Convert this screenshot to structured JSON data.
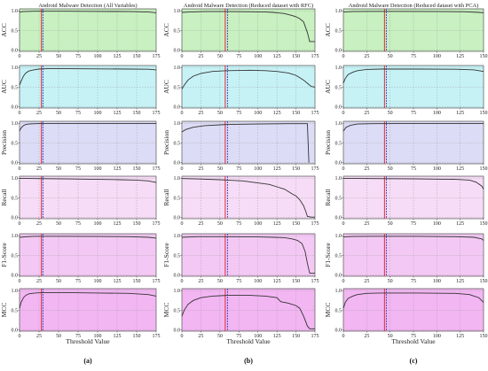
{
  "figure": {
    "panel_labels": [
      "(a)",
      "(b)",
      "(c)"
    ],
    "x_tick_label_size_note": "",
    "metric_colors": {
      "ACC": "#c8f0c0",
      "AUC": "#c6f2f6",
      "Precision": "#dcdcf6",
      "Recall": "#f6dcf6",
      "F1-Score": "#f4c8f4",
      "MCC": "#f2b6f2"
    },
    "curve_color": "#333333",
    "red_line_color": "#e8282d",
    "blue_line_color": "#3a58d8",
    "grid": true
  },
  "chart_data": [
    {
      "type": "line",
      "title": "Android Malware Detection (All Variables)",
      "xlabel": "Threshold Value",
      "xlim": [
        0,
        175
      ],
      "xticks": [
        "0",
        "25",
        "50",
        "75",
        "100",
        "125",
        "150",
        "175"
      ],
      "ylim": [
        0,
        1.0
      ],
      "yticks": [
        "0.0",
        "0.5",
        "1.0"
      ],
      "vlines": {
        "red": 28,
        "blue": 30
      },
      "metrics": [
        {
          "name": "ACC",
          "x": [
            0,
            5,
            10,
            20,
            30,
            60,
            100,
            140,
            165,
            175
          ],
          "y": [
            0.97,
            0.98,
            0.985,
            0.99,
            0.99,
            0.99,
            0.985,
            0.98,
            0.97,
            0.95
          ]
        },
        {
          "name": "AUC",
          "x": [
            0,
            2,
            5,
            8,
            12,
            18,
            25,
            35,
            60,
            100,
            140,
            165,
            175
          ],
          "y": [
            0.55,
            0.65,
            0.78,
            0.86,
            0.91,
            0.94,
            0.96,
            0.97,
            0.97,
            0.965,
            0.96,
            0.955,
            0.94
          ]
        },
        {
          "name": "Precision",
          "x": [
            0,
            2,
            5,
            8,
            12,
            20,
            30,
            100,
            175
          ],
          "y": [
            0.8,
            0.88,
            0.94,
            0.97,
            0.98,
            0.99,
            0.995,
            0.995,
            0.995
          ]
        },
        {
          "name": "Recall",
          "x": [
            0,
            20,
            60,
            100,
            130,
            150,
            165,
            175
          ],
          "y": [
            0.995,
            0.99,
            0.98,
            0.97,
            0.96,
            0.95,
            0.93,
            0.89
          ]
        },
        {
          "name": "F1-Score",
          "x": [
            0,
            10,
            20,
            60,
            100,
            140,
            165,
            175
          ],
          "y": [
            0.96,
            0.975,
            0.985,
            0.985,
            0.98,
            0.975,
            0.96,
            0.94
          ]
        },
        {
          "name": "MCC",
          "x": [
            0,
            2,
            5,
            8,
            12,
            20,
            30,
            60,
            100,
            140,
            165,
            175
          ],
          "y": [
            0.55,
            0.7,
            0.82,
            0.88,
            0.92,
            0.94,
            0.95,
            0.95,
            0.94,
            0.93,
            0.9,
            0.86
          ]
        }
      ]
    },
    {
      "type": "line",
      "title": "Android Malware Detection (Reduced dataset with RFC)",
      "xlabel": "Threshold Value",
      "xlim": [
        0,
        175
      ],
      "xticks": [
        "0",
        "25",
        "50",
        "75",
        "100",
        "125",
        "150",
        "175"
      ],
      "ylim": [
        0,
        1.0
      ],
      "yticks": [
        "0.0",
        "0.5",
        "1.0"
      ],
      "vlines": {
        "red": 57,
        "blue": 60
      },
      "metrics": [
        {
          "name": "ACC",
          "x": [
            0,
            10,
            30,
            60,
            90,
            110,
            120,
            125,
            135,
            145,
            150,
            155,
            160,
            165,
            168,
            175
          ],
          "y": [
            0.96,
            0.97,
            0.98,
            0.98,
            0.975,
            0.97,
            0.96,
            0.95,
            0.93,
            0.88,
            0.85,
            0.8,
            0.72,
            0.45,
            0.22,
            0.22
          ]
        },
        {
          "name": "AUC",
          "x": [
            0,
            3,
            8,
            15,
            25,
            40,
            60,
            90,
            110,
            125,
            140,
            150,
            155,
            160,
            165,
            170,
            175
          ],
          "y": [
            0.45,
            0.55,
            0.68,
            0.78,
            0.85,
            0.9,
            0.92,
            0.93,
            0.92,
            0.9,
            0.86,
            0.8,
            0.74,
            0.68,
            0.6,
            0.52,
            0.5
          ]
        },
        {
          "name": "Precision",
          "x": [
            0,
            5,
            15,
            30,
            60,
            100,
            140,
            165,
            166,
            167
          ],
          "y": [
            0.78,
            0.84,
            0.9,
            0.94,
            0.97,
            0.98,
            0.99,
            0.99,
            0.5,
            0.0
          ]
        },
        {
          "name": "Recall",
          "x": [
            0,
            20,
            50,
            80,
            100,
            115,
            125,
            135,
            145,
            150,
            155,
            160,
            163,
            165,
            170,
            175
          ],
          "y": [
            0.99,
            0.98,
            0.96,
            0.93,
            0.88,
            0.84,
            0.78,
            0.72,
            0.6,
            0.55,
            0.45,
            0.3,
            0.15,
            0.03,
            0.01,
            0.01
          ]
        },
        {
          "name": "F1-Score",
          "x": [
            0,
            20,
            60,
            100,
            120,
            135,
            145,
            152,
            158,
            162,
            165,
            168,
            175
          ],
          "y": [
            0.96,
            0.975,
            0.975,
            0.97,
            0.96,
            0.95,
            0.92,
            0.88,
            0.8,
            0.6,
            0.3,
            0.05,
            0.05
          ]
        },
        {
          "name": "MCC",
          "x": [
            0,
            3,
            8,
            15,
            25,
            40,
            60,
            90,
            110,
            125,
            130,
            140,
            150,
            155,
            160,
            165,
            168,
            175
          ],
          "y": [
            0.35,
            0.5,
            0.65,
            0.75,
            0.82,
            0.86,
            0.88,
            0.88,
            0.86,
            0.82,
            0.72,
            0.68,
            0.62,
            0.55,
            0.35,
            0.1,
            0.03,
            0.03
          ]
        }
      ]
    },
    {
      "type": "line",
      "title": "Android Malware Detection (Reduced dataset with PCA)",
      "xlabel": "Threshold Value",
      "xlim": [
        0,
        150
      ],
      "xticks": [
        "0",
        "25",
        "50",
        "75",
        "100",
        "125",
        "150"
      ],
      "ylim": [
        0,
        1.0
      ],
      "yticks": [
        "0.0",
        "0.5",
        "1.0"
      ],
      "vlines": {
        "red": 44,
        "blue": 46
      },
      "metrics": [
        {
          "name": "ACC",
          "x": [
            0,
            10,
            30,
            60,
            100,
            130,
            145,
            150
          ],
          "y": [
            0.97,
            0.98,
            0.985,
            0.985,
            0.98,
            0.975,
            0.96,
            0.95
          ]
        },
        {
          "name": "AUC",
          "x": [
            0,
            2,
            5,
            10,
            15,
            25,
            40,
            80,
            120,
            140,
            150
          ],
          "y": [
            0.6,
            0.72,
            0.82,
            0.88,
            0.92,
            0.95,
            0.96,
            0.96,
            0.955,
            0.94,
            0.9
          ]
        },
        {
          "name": "Precision",
          "x": [
            0,
            3,
            8,
            15,
            30,
            80,
            150
          ],
          "y": [
            0.8,
            0.9,
            0.95,
            0.98,
            0.99,
            0.995,
            0.995
          ]
        },
        {
          "name": "Recall",
          "x": [
            0,
            30,
            80,
            120,
            135,
            142,
            148,
            150
          ],
          "y": [
            0.995,
            0.99,
            0.98,
            0.97,
            0.95,
            0.9,
            0.8,
            0.72
          ]
        },
        {
          "name": "F1-Score",
          "x": [
            0,
            10,
            30,
            80,
            120,
            140,
            148,
            150
          ],
          "y": [
            0.97,
            0.98,
            0.985,
            0.985,
            0.975,
            0.96,
            0.92,
            0.88
          ]
        },
        {
          "name": "MCC",
          "x": [
            0,
            2,
            5,
            10,
            15,
            25,
            40,
            80,
            120,
            135,
            145,
            150
          ],
          "y": [
            0.55,
            0.7,
            0.8,
            0.86,
            0.9,
            0.93,
            0.94,
            0.94,
            0.93,
            0.9,
            0.82,
            0.7
          ]
        }
      ]
    }
  ]
}
